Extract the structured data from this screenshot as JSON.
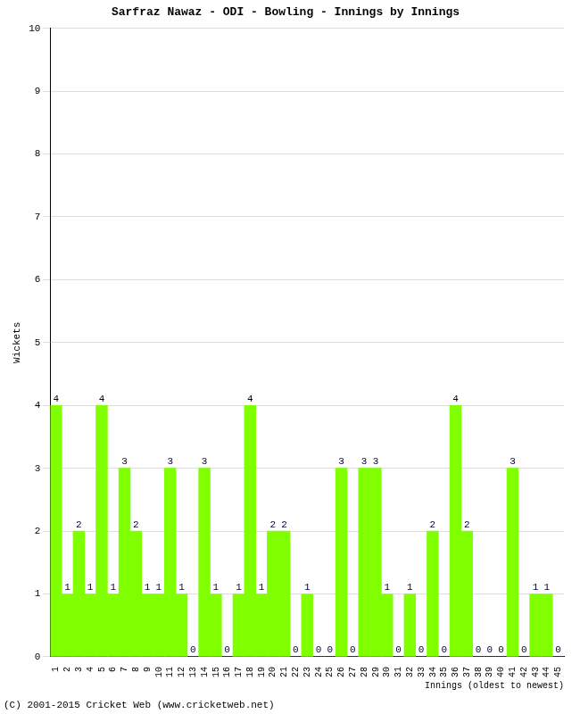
{
  "chart_data": {
    "type": "bar",
    "title": "Sarfraz Nawaz - ODI - Bowling - Innings by Innings",
    "x_label": "Innings (oldest to newest)",
    "y_label": "Wickets",
    "annotations": [
      "(C) 2001-2015 Cricket Web (www.cricketweb.net)"
    ],
    "categories": [
      "1",
      "2",
      "3",
      "4",
      "5",
      "6",
      "7",
      "8",
      "9",
      "10",
      "11",
      "12",
      "13",
      "14",
      "15",
      "16",
      "17",
      "18",
      "19",
      "20",
      "21",
      "22",
      "23",
      "24",
      "25",
      "26",
      "27",
      "28",
      "29",
      "30",
      "31",
      "32",
      "33",
      "34",
      "35",
      "36",
      "37",
      "38",
      "39",
      "40",
      "41",
      "42",
      "43",
      "44",
      "45"
    ],
    "values": [
      4,
      1,
      2,
      1,
      4,
      1,
      3,
      2,
      1,
      1,
      3,
      1,
      0,
      3,
      1,
      0,
      1,
      4,
      1,
      2,
      2,
      0,
      1,
      0,
      0,
      3,
      0,
      3,
      3,
      1,
      0,
      1,
      0,
      2,
      0,
      4,
      2,
      0,
      0,
      0,
      3,
      0,
      1,
      1,
      0
    ],
    "color": "#80ff00",
    "ylim": [
      0,
      10
    ],
    "yticks": [
      0,
      1,
      2,
      3,
      4,
      5,
      6,
      7,
      8,
      9,
      10
    ],
    "grid": true,
    "data_labels": true
  }
}
